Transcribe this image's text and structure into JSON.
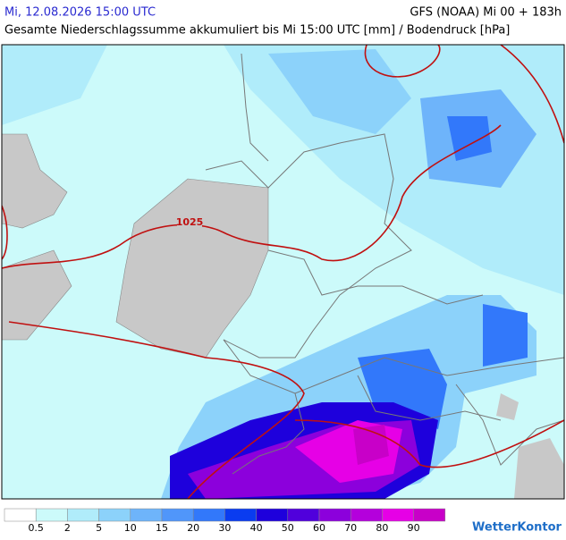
{
  "header": {
    "date": "Mi, 12.08.2026 15:00 UTC",
    "model": "GFS (NOAA) Mi 00 + 183h",
    "subtitle": "Gesamte Niederschlagssumme akkumuliert bis Mi 15:00 UTC [mm] / Bodendruck [hPa]"
  },
  "map": {
    "isobar_label": "1025"
  },
  "legend": {
    "labels": [
      0.5,
      2,
      5,
      10,
      15,
      20,
      30,
      40,
      50,
      60,
      70,
      80,
      90
    ],
    "colors": [
      "#ffffff",
      "#ccfafa",
      "#b0ecfa",
      "#8cd2fa",
      "#6eb4fa",
      "#5096fa",
      "#3278fa",
      "#0a3cf0",
      "#1e00dc",
      "#5000dc",
      "#8c00dc",
      "#b400dc",
      "#e600e6",
      "#c800c8"
    ]
  },
  "brand": "WetterKontor"
}
